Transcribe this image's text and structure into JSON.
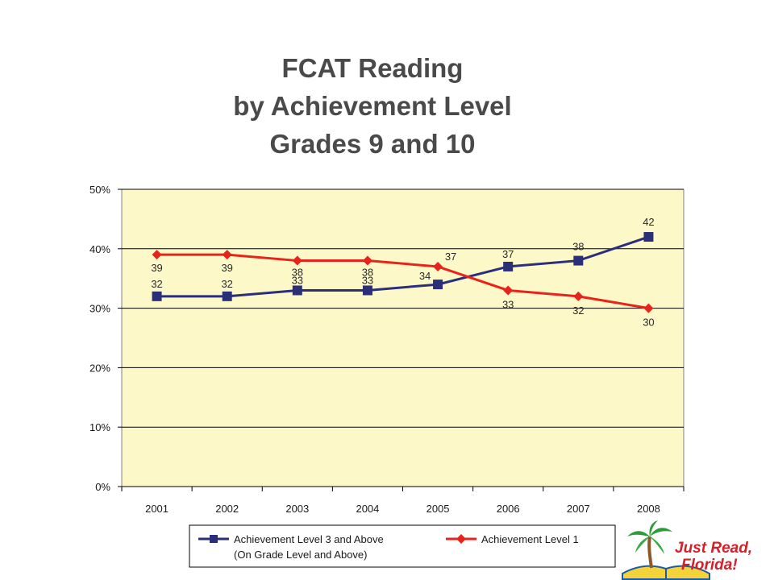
{
  "chart_data": {
    "type": "line",
    "title_lines": [
      "FCAT Reading",
      "by Achievement Level",
      "Grades 9 and 10"
    ],
    "categories": [
      "2001",
      "2002",
      "2003",
      "2004",
      "2005",
      "2006",
      "2007",
      "2008"
    ],
    "ylim": [
      0,
      50
    ],
    "yticks": [
      0,
      10,
      20,
      30,
      40,
      50
    ],
    "ytick_labels": [
      "0%",
      "10%",
      "20%",
      "30%",
      "40%",
      "50%"
    ],
    "grid": true,
    "legend_position": "bottom",
    "series": [
      {
        "name": "Achievement Level 3 and Above",
        "name_line2": "(On Grade Level and Above)",
        "values": [
          32,
          32,
          33,
          33,
          34,
          37,
          38,
          42
        ],
        "color": "#2b2f7a",
        "marker": "square"
      },
      {
        "name": "Achievement Level 1",
        "values": [
          39,
          39,
          38,
          38,
          37,
          33,
          32,
          30
        ],
        "color": "#e8231c",
        "marker": "diamond"
      }
    ],
    "plot_background": "#fdf8c8"
  },
  "logo": {
    "text_line1": "Just Read,",
    "text_line2": "Florida!"
  }
}
